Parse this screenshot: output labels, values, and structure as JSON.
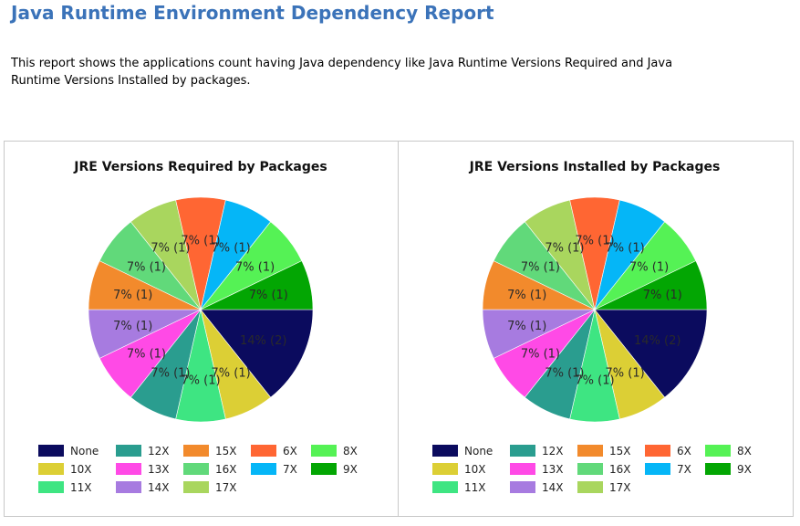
{
  "report": {
    "title": "Java Runtime Environment Dependency Report",
    "description": "This report shows the applications count having Java dependency like Java Runtime Versions Required and Java Runtime Versions Installed by packages."
  },
  "chart_data": [
    {
      "type": "pie",
      "title": "JRE Versions Required by Packages",
      "categories": [
        "None",
        "6X",
        "7X",
        "8X",
        "9X",
        "10X",
        "11X",
        "12X",
        "13X",
        "14X",
        "15X",
        "16X",
        "17X"
      ],
      "values": [
        2,
        1,
        1,
        1,
        1,
        1,
        1,
        1,
        1,
        1,
        1,
        1,
        1
      ],
      "slice_order": [
        "None",
        "10X",
        "11X",
        "12X",
        "13X",
        "14X",
        "15X",
        "16X",
        "17X",
        "6X",
        "7X",
        "8X",
        "9X"
      ],
      "labels": [
        "14% (2)",
        "7% (1)",
        "7% (1)",
        "7% (1)",
        "7% (1)",
        "7% (1)",
        "7% (1)",
        "7% (1)",
        "7% (1)",
        "7% (1)",
        "7% (1)",
        "7% (1)",
        "7% (1)"
      ],
      "legend": {
        "placement": "bottom",
        "entries": [
          "None",
          "12X",
          "15X",
          "6X",
          "8X",
          "10X",
          "13X",
          "16X",
          "7X",
          "9X",
          "11X",
          "14X",
          "17X"
        ]
      }
    },
    {
      "type": "pie",
      "title": "JRE Versions Installed by Packages",
      "categories": [
        "None",
        "6X",
        "7X",
        "8X",
        "9X",
        "10X",
        "11X",
        "12X",
        "13X",
        "14X",
        "15X",
        "16X",
        "17X"
      ],
      "values": [
        2,
        1,
        1,
        1,
        1,
        1,
        1,
        1,
        1,
        1,
        1,
        1,
        1
      ],
      "slice_order": [
        "None",
        "10X",
        "11X",
        "12X",
        "13X",
        "14X",
        "15X",
        "16X",
        "17X",
        "6X",
        "7X",
        "8X",
        "9X"
      ],
      "labels": [
        "14% (2)",
        "7% (1)",
        "7% (1)",
        "7% (1)",
        "7% (1)",
        "7% (1)",
        "7% (1)",
        "7% (1)",
        "7% (1)",
        "7% (1)",
        "7% (1)",
        "7% (1)",
        "7% (1)"
      ],
      "legend": {
        "placement": "bottom",
        "entries": [
          "None",
          "12X",
          "15X",
          "6X",
          "8X",
          "10X",
          "13X",
          "16X",
          "7X",
          "9X",
          "11X",
          "14X",
          "17X"
        ]
      }
    }
  ],
  "colors": {
    "None": "#0b0b5e",
    "10X": "#dccf35",
    "11X": "#3ee582",
    "12X": "#2a9d8f",
    "13X": "#ff4ae6",
    "14X": "#a77be0",
    "15X": "#f28a2c",
    "16X": "#61d97a",
    "17X": "#a9d65e",
    "6X": "#ff6633",
    "7X": "#05b6f7",
    "8X": "#55f255",
    "9X": "#03a603"
  }
}
